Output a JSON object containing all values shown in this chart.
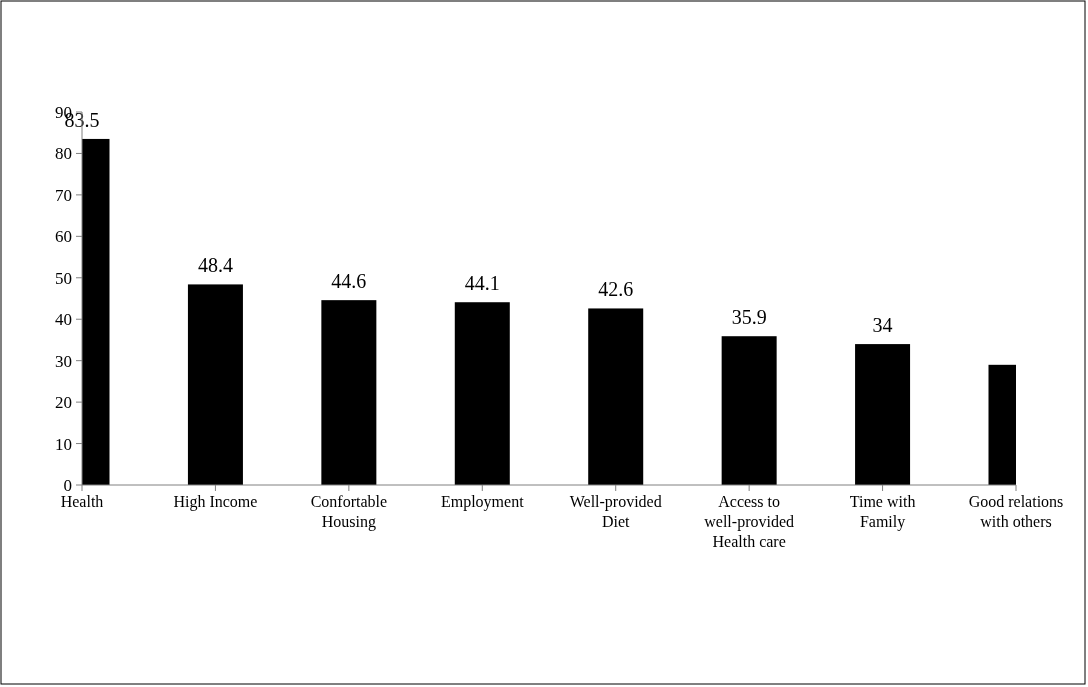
{
  "chart_data": {
    "type": "bar",
    "categories": [
      "Health",
      "High Income",
      "Confortable Housing",
      "Employment",
      "Well-provided Diet",
      "Access to well-provided Health care",
      "Time with Family",
      "Good relations with others"
    ],
    "values": [
      83.5,
      48.4,
      44.6,
      44.1,
      42.6,
      35.9,
      34,
      29
    ],
    "value_labels": [
      "83.5",
      "48.4",
      "44.6",
      "44.1",
      "42.6",
      "35.9",
      "34",
      null
    ],
    "color": "#000000",
    "ylim": [
      0,
      90
    ],
    "yticks": [
      0,
      10,
      20,
      30,
      40,
      50,
      60,
      70,
      80,
      90
    ]
  }
}
